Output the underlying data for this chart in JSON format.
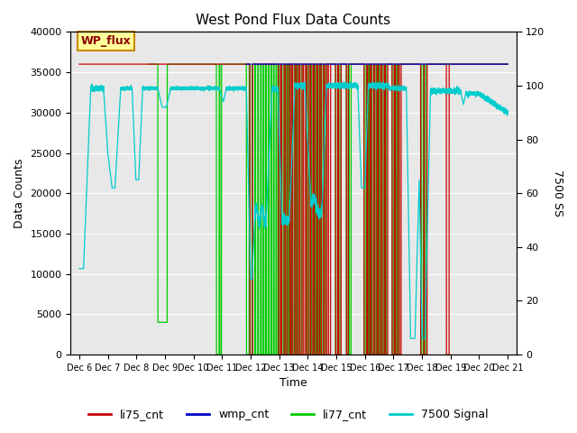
{
  "title": "West Pond Flux Data Counts",
  "xlabel": "Time",
  "ylabel_left": "Data Counts",
  "ylabel_right": "7500 SS",
  "xlim_days": [
    5.7,
    21.3
  ],
  "ylim_left": [
    0,
    40000
  ],
  "ylim_right": [
    0,
    120
  ],
  "yticks_left": [
    0,
    5000,
    10000,
    15000,
    20000,
    25000,
    30000,
    35000,
    40000
  ],
  "yticks_right": [
    0,
    20,
    40,
    60,
    80,
    100,
    120
  ],
  "xtick_labels": [
    "Dec 6",
    "Dec 7",
    "Dec 8",
    "Dec 9",
    "Dec 10",
    "Dec 11",
    "Dec 12",
    "Dec 13",
    "Dec 14",
    "Dec 15",
    "Dec 16",
    "Dec 17",
    "Dec 18",
    "Dec 19",
    "Dec 20",
    "Dec 21"
  ],
  "xtick_positions": [
    6,
    7,
    8,
    9,
    10,
    11,
    12,
    13,
    14,
    15,
    16,
    17,
    18,
    19,
    20,
    21
  ],
  "colors": {
    "li75_cnt": "#cc0000",
    "wmp_cnt": "#0000cc",
    "li77_cnt": "#00cc00",
    "signal7500": "#00cccc",
    "annotation_bg": "#ffff99",
    "annotation_border": "#cc8800"
  },
  "legend_label": "WP_flux",
  "background_color": "#e8e8e8"
}
